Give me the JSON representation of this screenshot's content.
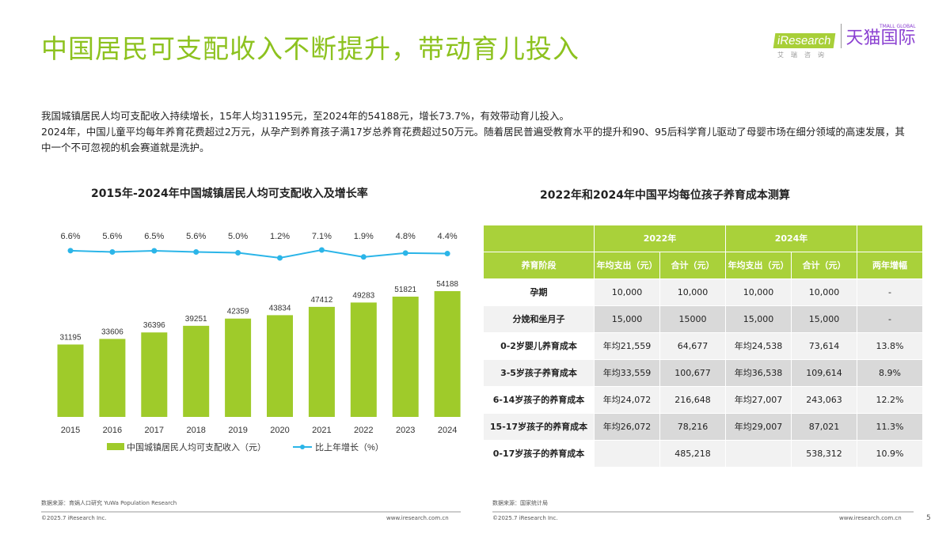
{
  "title": "中国居民可支配收入不断提升，带动育儿投入",
  "logo": {
    "iresearch": "iResearch",
    "iresearch_sub": "艾瑞咨询",
    "tmall": "天猫国际",
    "tmall_en": "TMALL GLOBAL"
  },
  "intro": [
    "我国城镇居民人均可支配收入持续增长，15年人均31195元，至2024年的54188元，增长73.7%，有效带动育儿投入。",
    "2024年，中国儿童平均每年养育花费超过2万元，从孕产到养育孩子满17岁总养育花费超过50万元。随着居民普遍受教育水平的提升和90、95后科学育儿驱动了母婴市场在细分领域的高速发展，其中一个不可忽视的机会赛道就是洗护。"
  ],
  "colors": {
    "accent": "#8dc21f",
    "bar": "#9fcb2a",
    "line": "#2bb5e8",
    "table_header": "#a9d13a"
  },
  "chart_data": {
    "type": "bar",
    "title": "2015年-2024年中国城镇居民人均可支配收入及增长率",
    "categories": [
      "2015",
      "2016",
      "2017",
      "2018",
      "2019",
      "2020",
      "2021",
      "2022",
      "2023",
      "2024"
    ],
    "series": [
      {
        "name": "中国城镇居民人均可支配收入（元）",
        "type": "bar",
        "values": [
          31195,
          33606,
          36396,
          39251,
          42359,
          43834,
          47412,
          49283,
          51821,
          54188
        ]
      },
      {
        "name": "比上年增长（%）",
        "type": "line",
        "values": [
          6.6,
          5.6,
          6.5,
          5.6,
          5.0,
          1.2,
          7.1,
          1.9,
          4.8,
          4.4
        ],
        "labels": [
          "6.6%",
          "5.6%",
          "6.5%",
          "5.6%",
          "5.0%",
          "1.2%",
          "7.1%",
          "1.9%",
          "4.8%",
          "4.4%"
        ]
      }
    ],
    "legend": "bottom"
  },
  "table": {
    "title": "2022年和2024年中国平均每位孩子养育成本测算",
    "years": [
      "2022年",
      "2024年"
    ],
    "headers": [
      "养育阶段",
      "年均支出（元）",
      "合计（元）",
      "年均支出（元）",
      "合计（元）",
      "两年增幅"
    ],
    "rows": [
      [
        "孕期",
        "10,000",
        "10,000",
        "10,000",
        "10,000",
        "-"
      ],
      [
        "分娩和坐月子",
        "15,000",
        "15000",
        "15,000",
        "15,000",
        "-"
      ],
      [
        "0-2岁婴儿养育成本",
        "年均21,559",
        "64,677",
        "年均24,538",
        "73,614",
        "13.8%"
      ],
      [
        "3-5岁孩子养育成本",
        "年均33,559",
        "100,677",
        "年均36,538",
        "109,614",
        "8.9%"
      ],
      [
        "6-14岁孩子的养育成本",
        "年均24,072",
        "216,648",
        "年均27,007",
        "243,063",
        "12.2%"
      ],
      [
        "15-17岁孩子的养育成本",
        "年均26,072",
        "78,216",
        "年均29,007",
        "87,021",
        "11.3%"
      ],
      [
        "0-17岁孩子的养育成本",
        "",
        "485,218",
        "",
        "538,312",
        "10.9%"
      ]
    ]
  },
  "footer": {
    "source_left": "数据来源：育娲人口研究 YuWa Population Research",
    "source_right": "数据来源：国家统计局",
    "copyright": "©2025.7 iResearch Inc.",
    "site": "www.iresearch.com.cn",
    "page": "5"
  }
}
